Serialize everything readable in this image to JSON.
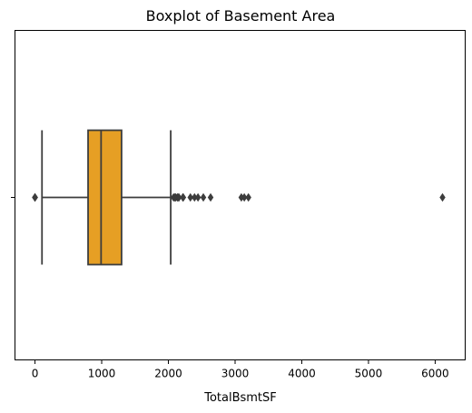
{
  "chart_data": {
    "type": "boxplot",
    "title": "Boxplot of Basement Area",
    "xlabel": "TotalBsmtSF",
    "ylabel": "",
    "xlim": [
      -300,
      6450
    ],
    "xticks": [
      0,
      1000,
      2000,
      3000,
      4000,
      5000,
      6000
    ],
    "xtick_labels": [
      "0",
      "1000",
      "2000",
      "3000",
      "4000",
      "5000",
      "6000"
    ],
    "grid": false,
    "box": {
      "whisker_low": 105,
      "q1": 796,
      "median": 991,
      "q3": 1298,
      "whisker_high": 2035
    },
    "outliers": [
      0,
      0,
      0,
      0,
      2077,
      2097,
      2110,
      2136,
      2153,
      2158,
      2217,
      2223,
      2330,
      2392,
      2444,
      2524,
      2633,
      3094,
      3138,
      3200,
      6110
    ],
    "colors": {
      "box_fill": "#e69f24",
      "line": "#3d3d3d",
      "axis": "#000000"
    }
  }
}
